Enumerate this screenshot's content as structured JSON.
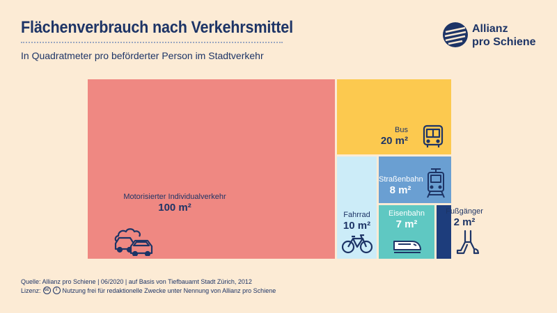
{
  "header": {
    "title": "Flächenverbrauch nach Verkehrsmittel",
    "subtitle": "In Quadratmeter pro beförderter Person im Stadtverkehr"
  },
  "logo": {
    "line1": "Allianz",
    "line2": "pro Schiene"
  },
  "footer": {
    "source": "Quelle: Allianz pro Schiene | 06/2020 | auf Basis von Tiefbauamt Stadt Zürich, 2012",
    "license_label": "Lizenz:",
    "license_text": "Nutzung frei für redaktionelle Zwecke unter Nennung von Allianz pro Schiene"
  },
  "chart_data": {
    "type": "treemap",
    "unit": "m²",
    "items": [
      {
        "name": "Motorisierter Individualverkehr",
        "value": 100,
        "label": "100 m²",
        "color": "#ef8882",
        "icon": "car-icon"
      },
      {
        "name": "Bus",
        "value": 20,
        "label": "20 m²",
        "color": "#fcc94f",
        "icon": "bus-icon"
      },
      {
        "name": "Fahrrad",
        "value": 10,
        "label": "10 m²",
        "color": "#ccecf8",
        "icon": "bicycle-icon"
      },
      {
        "name": "Straßenbahn",
        "value": 8,
        "label": "8 m²",
        "color": "#6a9fd2",
        "icon": "tram-icon"
      },
      {
        "name": "Eisenbahn",
        "value": 7,
        "label": "7 m²",
        "color": "#5fc8c2",
        "icon": "train-icon"
      },
      {
        "name": "Fußgänger",
        "value": 2,
        "label": "2 m²",
        "color": "#1d3d7c",
        "icon": "pedestrian-icon"
      }
    ]
  }
}
